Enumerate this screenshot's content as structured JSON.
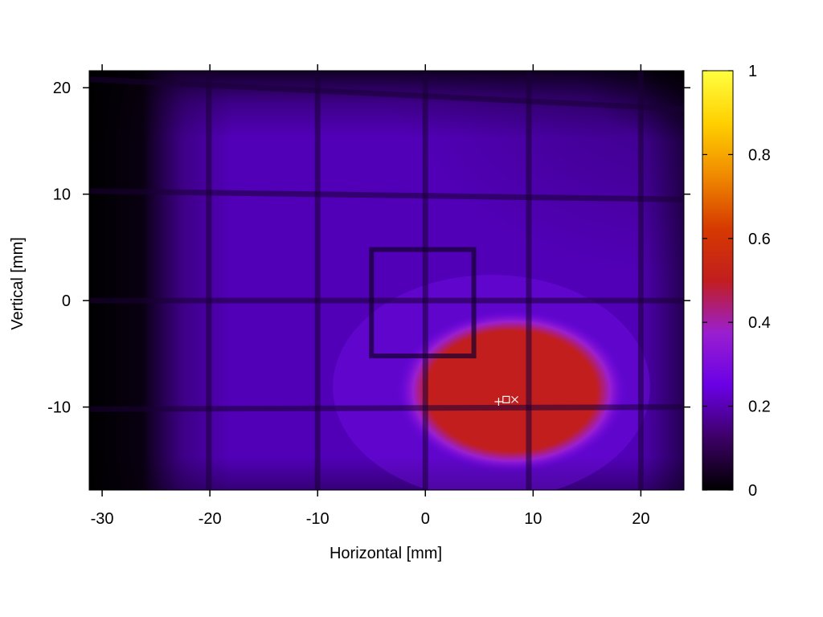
{
  "chart_data": {
    "type": "heatmap",
    "title": "",
    "xlabel": "Horizontal [mm]",
    "ylabel": "Vertical [mm]",
    "xlim": [
      -31.2,
      24
    ],
    "ylim": [
      -17.8,
      21.6
    ],
    "x_ticks": [
      -30,
      -20,
      -10,
      0,
      10,
      20
    ],
    "x_tick_labels": [
      "-30",
      "-20",
      "-10",
      "0",
      "10",
      "20"
    ],
    "y_ticks": [
      -10,
      0,
      10,
      20
    ],
    "y_tick_labels": [
      "-10",
      "0",
      "10",
      "20"
    ],
    "colorbar": {
      "range": [
        0,
        1
      ],
      "ticks": [
        0,
        0.2,
        0.4,
        0.6,
        0.8,
        1
      ],
      "tick_labels": [
        "0",
        "0.2",
        "0.4",
        "0.6",
        "0.8",
        "1"
      ],
      "colormap": [
        "#000000",
        "#3d0066",
        "#6a00e6",
        "#9a1fd0",
        "#c21e1e",
        "#d63a00",
        "#f08a00",
        "#ffd000",
        "#ffff40"
      ]
    },
    "grid": false,
    "field": {
      "background_level": 0.17,
      "edge_falloff": "dark towards left and top-right edges",
      "hot_spot": {
        "center": [
          8,
          -8.5
        ],
        "half_width": 9.5,
        "half_height": 6.8,
        "level": 0.5
      },
      "vertical_shadows_x": [
        -20.1,
        -10,
        0,
        9.6,
        20
      ],
      "horizontal_shadows": [
        {
          "x": [
            -31.2,
            24
          ],
          "y": [
            20.8,
            18
          ]
        },
        {
          "x": [
            -31.2,
            24
          ],
          "y": [
            10.3,
            9.5
          ]
        },
        {
          "x": [
            -31.2,
            24
          ],
          "y": [
            0,
            0
          ]
        },
        {
          "x": [
            -31.2,
            24
          ],
          "y": [
            -10.2,
            -10
          ]
        }
      ],
      "square_frame": {
        "x": [
          -5,
          4.5
        ],
        "y": [
          -5.2,
          4.8
        ]
      }
    },
    "markers": [
      {
        "symbol": "+",
        "x": 6.8,
        "y": -9.5,
        "color": "#ffffff"
      },
      {
        "symbol": "□",
        "x": 7.5,
        "y": -9.3,
        "color": "#ffffff"
      },
      {
        "symbol": "×",
        "x": 8.3,
        "y": -9.3,
        "color": "#ffffff"
      }
    ]
  }
}
